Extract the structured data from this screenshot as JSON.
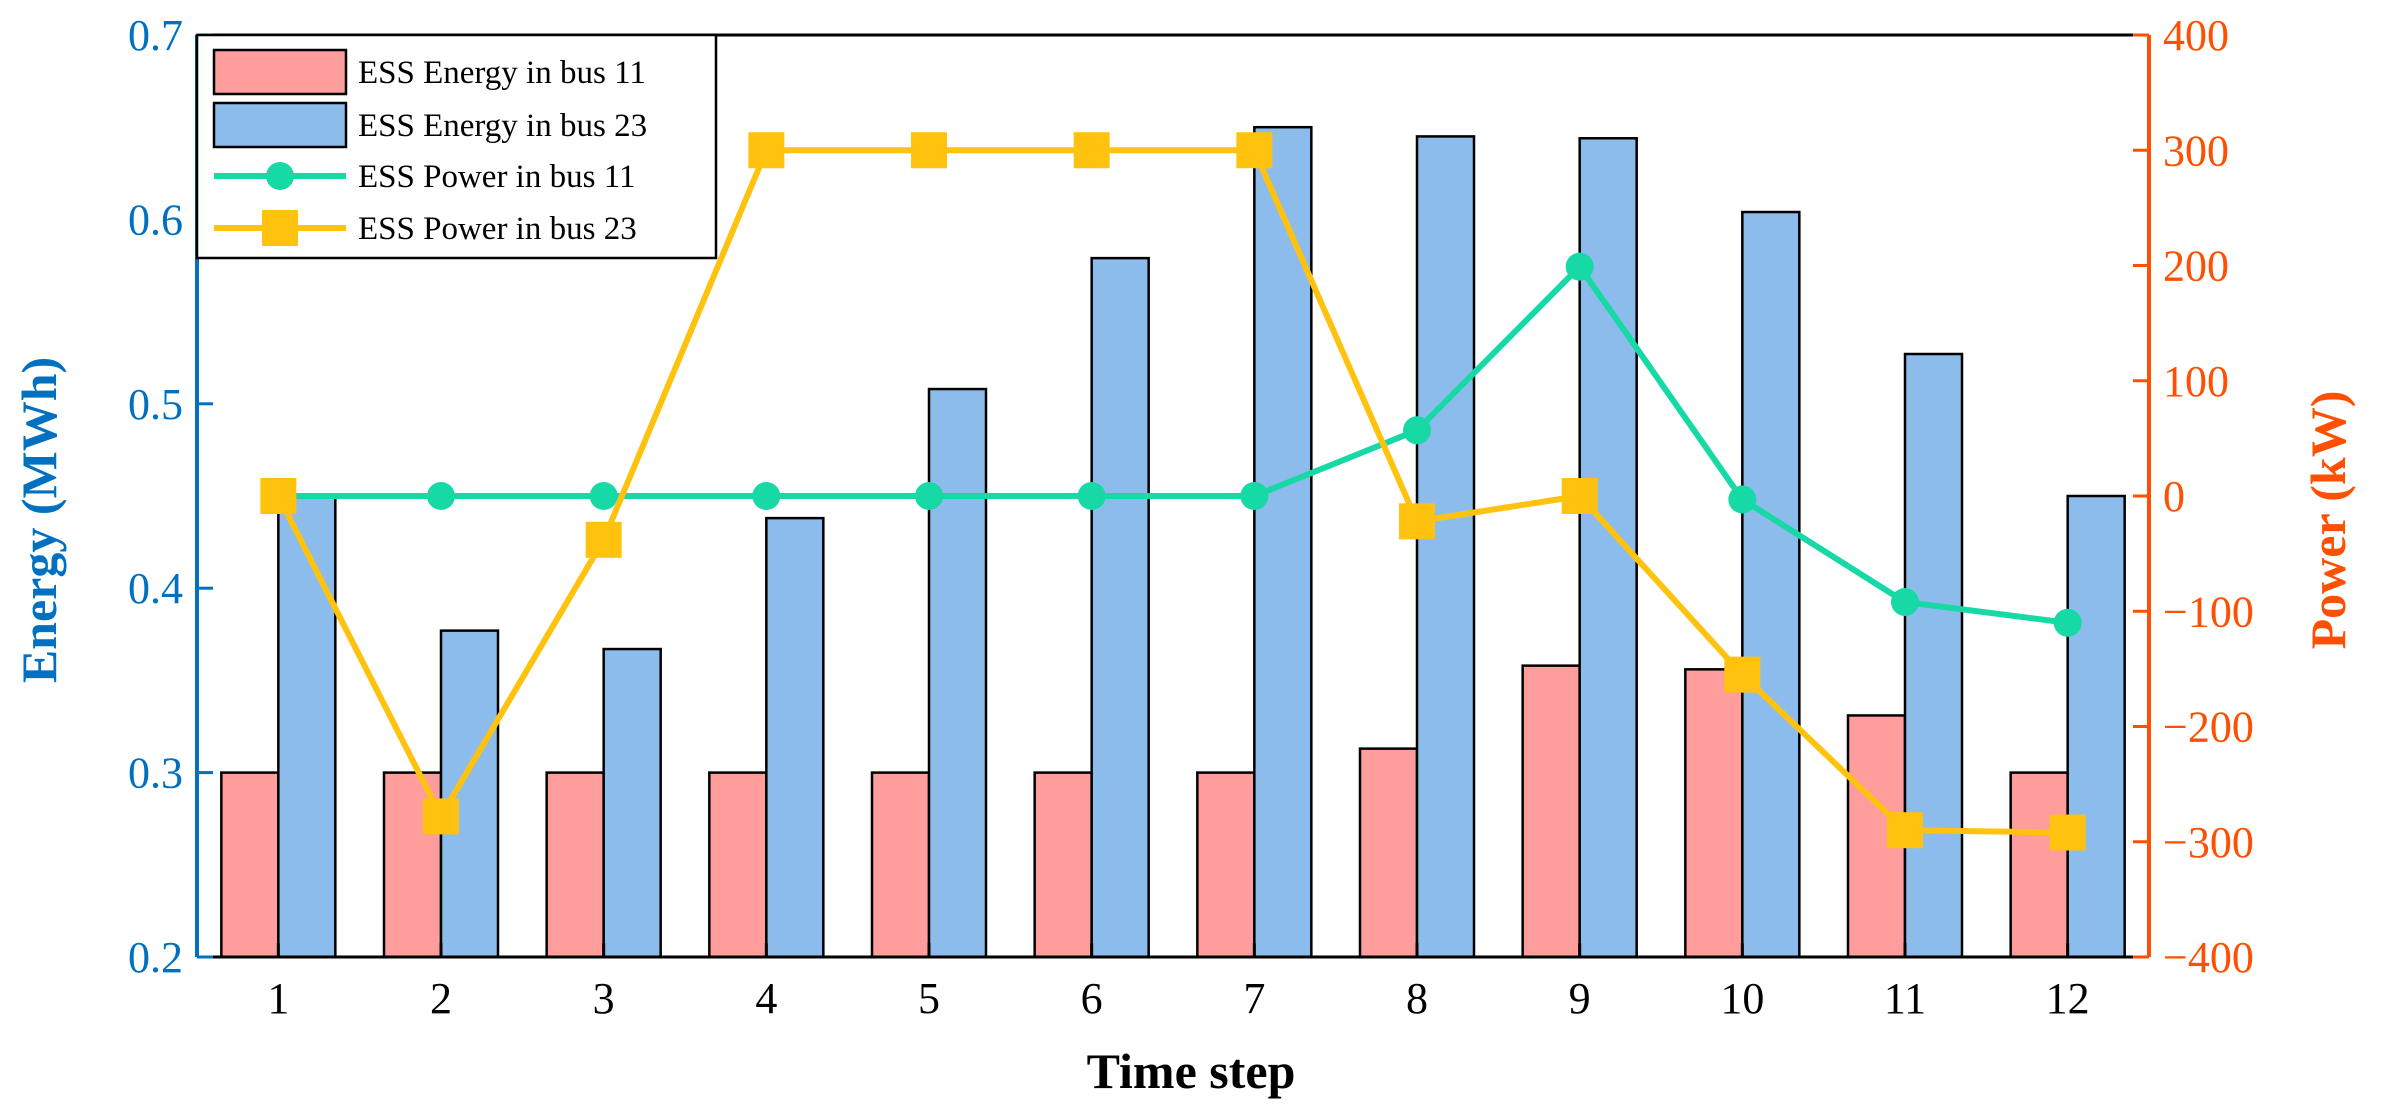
{
  "chart_data": {
    "type": "bar",
    "categories": [
      "1",
      "2",
      "3",
      "4",
      "5",
      "6",
      "7",
      "8",
      "9",
      "10",
      "11",
      "12"
    ],
    "xlabel": "Time step",
    "ylabel": "Energy (MWh)",
    "y2label": "Power (kW)",
    "ylim": [
      0.2,
      0.7
    ],
    "y2lim": [
      -400,
      400
    ],
    "yticks": [
      "0.2",
      "0.3",
      "0.4",
      "0.5",
      "0.6",
      "0.7"
    ],
    "y2ticks": [
      "400",
      "300",
      "200",
      "100",
      "0",
      "−100",
      "−200",
      "−300",
      "−400"
    ],
    "legend_position": "top-left",
    "bar_series": [
      {
        "name": "ESS Energy in bus 11",
        "axis": "left",
        "color": "#ff9c9c",
        "values": [
          0.3,
          0.3,
          0.3,
          0.3,
          0.3,
          0.3,
          0.3,
          0.313,
          0.358,
          0.356,
          0.331,
          0.3
        ]
      },
      {
        "name": "ESS Energy in bus 23",
        "axis": "left",
        "color": "#8cbcec",
        "values": [
          0.45,
          0.377,
          0.367,
          0.438,
          0.508,
          0.579,
          0.65,
          0.645,
          0.644,
          0.604,
          0.527,
          0.45
        ]
      }
    ],
    "line_series": [
      {
        "name": "ESS Power in bus 11",
        "axis": "right",
        "color": "#17d9a6",
        "marker": "circle",
        "values": [
          0,
          0,
          0,
          0,
          0,
          0,
          0,
          57,
          199,
          -3,
          -92,
          -110
        ]
      },
      {
        "name": "ESS Power in bus 23",
        "axis": "right",
        "color": "#ffc20e",
        "marker": "square",
        "values": [
          0,
          -278,
          -38,
          300,
          300,
          300,
          300,
          -22,
          0,
          -155,
          -290,
          -292
        ]
      }
    ],
    "colors": {
      "left_axis": "#0070c0",
      "right_axis": "#ff4f00",
      "xlabel": "#000000"
    }
  }
}
